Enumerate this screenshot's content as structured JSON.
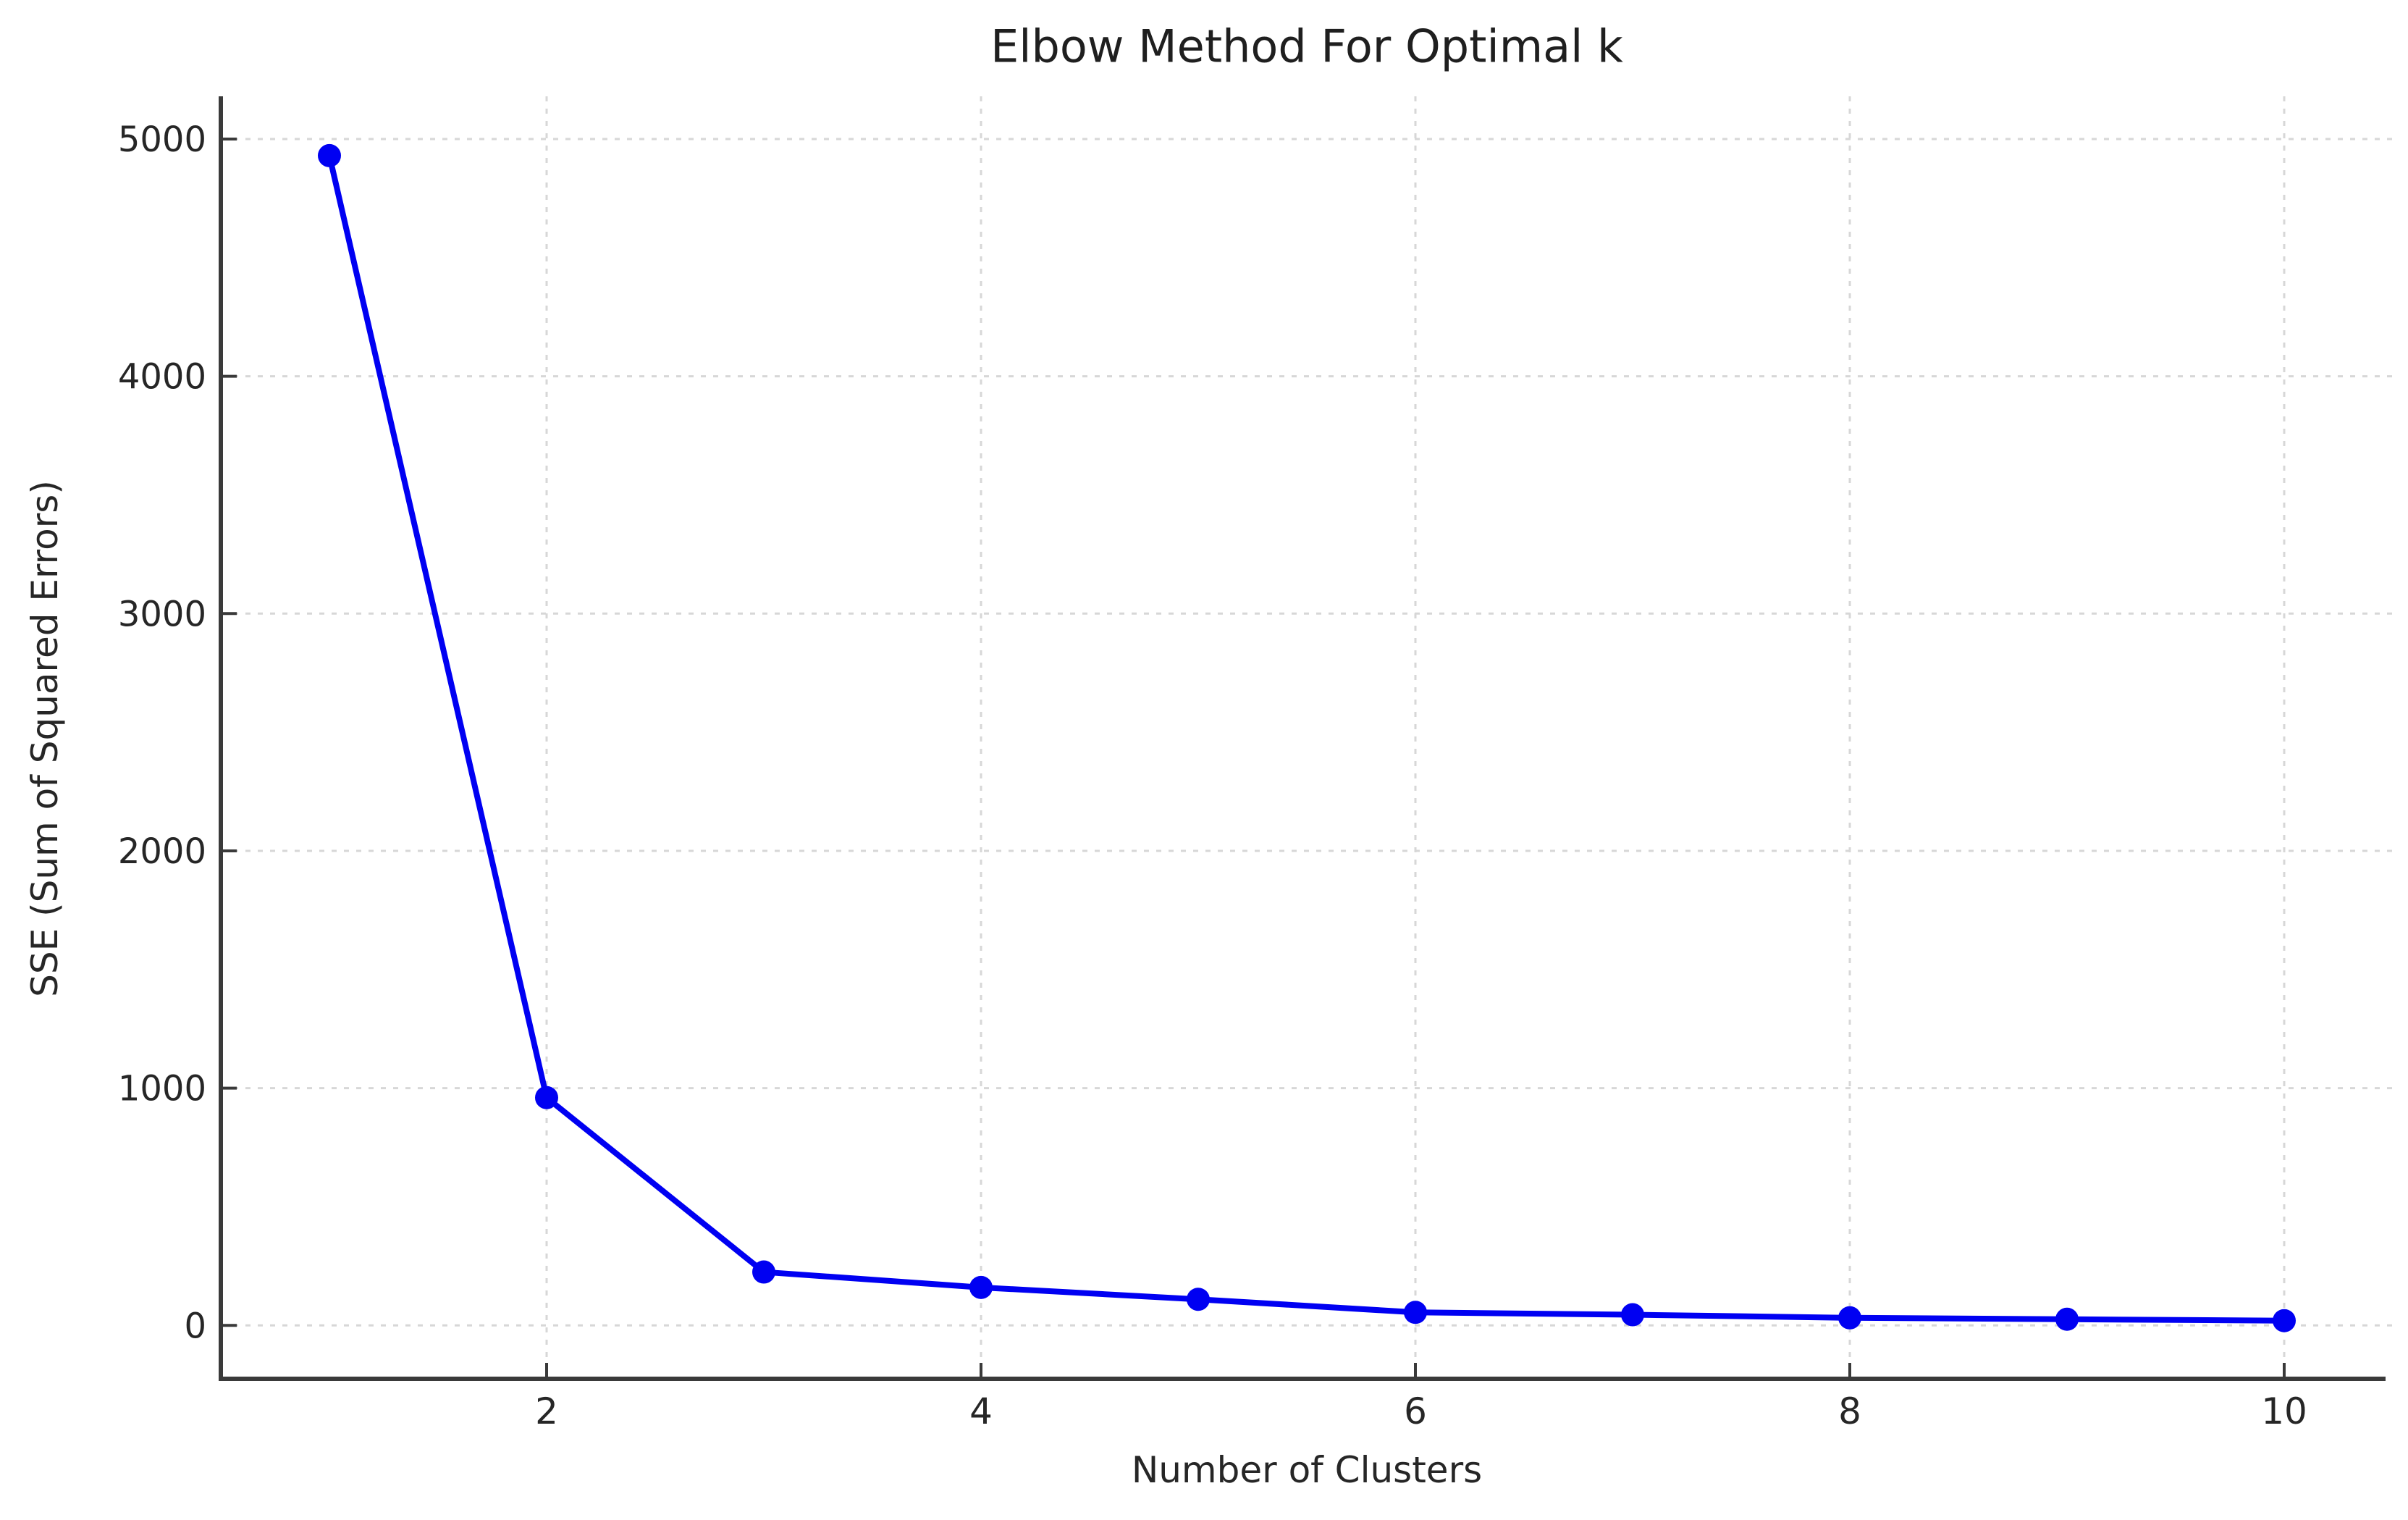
{
  "chart_data": {
    "type": "line",
    "title": "Elbow Method For Optimal k",
    "xlabel": "Number of Clusters",
    "ylabel": "SSE (Sum of Squared Errors)",
    "x": [
      1,
      2,
      3,
      4,
      5,
      6,
      7,
      8,
      9,
      10
    ],
    "series": [
      {
        "name": "SSE",
        "values": [
          4930,
          960,
          225,
          160,
          110,
          55,
          45,
          32,
          26,
          20
        ]
      }
    ],
    "xtick_values": [
      2,
      4,
      6,
      8,
      10
    ],
    "xtick_labels": [
      "2",
      "4",
      "6",
      "8",
      "10"
    ],
    "ytick_values": [
      0,
      1000,
      2000,
      3000,
      4000,
      5000
    ],
    "ytick_labels": [
      "0",
      "1000",
      "2000",
      "3000",
      "4000",
      "5000"
    ],
    "xlim": [
      0.5,
      10.5
    ],
    "ylim": [
      -225,
      5180
    ],
    "grid": "on",
    "grid_style": "dotted",
    "legend_position": "none",
    "line_color": "#0000f2",
    "marker": "circle",
    "marker_color": "#0000f2",
    "grid_color": "#d7d7d7",
    "axis_color": "#3a3a3a",
    "text_color": "#262626"
  }
}
